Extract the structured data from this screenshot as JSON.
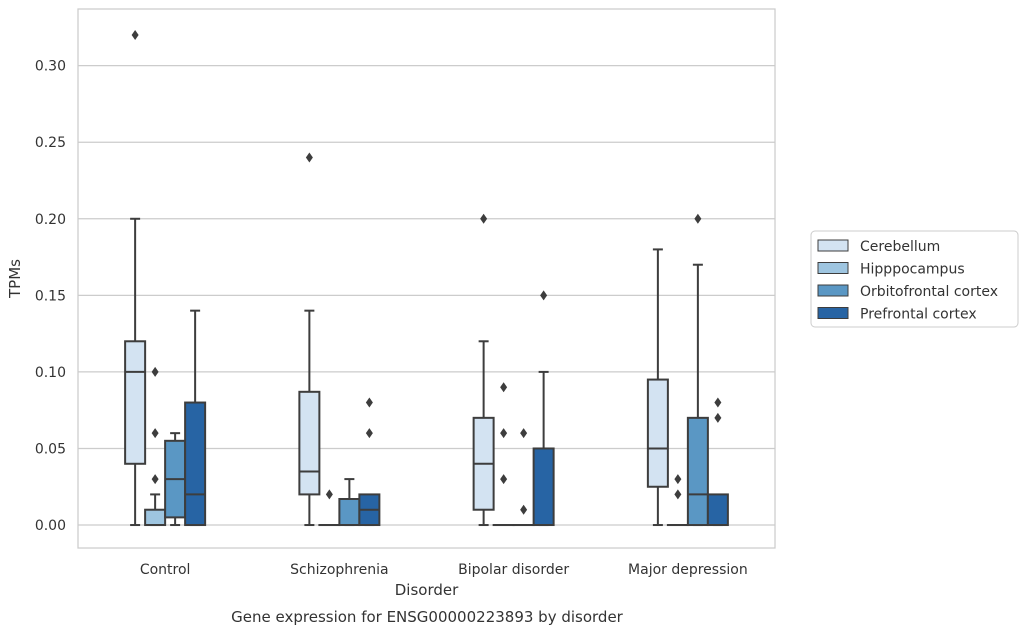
{
  "chart_data": {
    "type": "box",
    "caption": "Gene expression for ENSG00000223893 by disorder",
    "xlabel": "Disorder",
    "ylabel": "TPMs",
    "ylim": [
      -0.015,
      0.337
    ],
    "yticks": [
      0.0,
      0.05,
      0.1,
      0.15,
      0.2,
      0.25,
      0.3
    ],
    "ytick_labels": [
      "0.00",
      "0.05",
      "0.10",
      "0.15",
      "0.20",
      "0.25",
      "0.30"
    ],
    "grid": "horizontal",
    "legend_position": "right",
    "categories": [
      "Control",
      "Schizophrenia",
      "Bipolar disorder",
      "Major depression"
    ],
    "series": [
      {
        "name": "Cerebellum",
        "color": "#d3e3f2",
        "boxes": [
          {
            "whislo": 0.0,
            "q1": 0.04,
            "med": 0.1,
            "q3": 0.12,
            "whishi": 0.2,
            "fliers": [
              0.32
            ]
          },
          {
            "whislo": 0.0,
            "q1": 0.02,
            "med": 0.035,
            "q3": 0.087,
            "whishi": 0.14,
            "fliers": [
              0.24
            ]
          },
          {
            "whislo": 0.0,
            "q1": 0.01,
            "med": 0.04,
            "q3": 0.07,
            "whishi": 0.12,
            "fliers": [
              0.2
            ]
          },
          {
            "whislo": 0.0,
            "q1": 0.025,
            "med": 0.05,
            "q3": 0.095,
            "whishi": 0.18,
            "fliers": []
          }
        ]
      },
      {
        "name": "Hipppocampus",
        "color": "#9ec5e0",
        "boxes": [
          {
            "whislo": 0.0,
            "q1": 0.0,
            "med": 0.0,
            "q3": 0.01,
            "whishi": 0.02,
            "fliers": [
              0.03,
              0.06,
              0.1
            ]
          },
          {
            "whislo": 0.0,
            "q1": 0.0,
            "med": 0.0,
            "q3": 0.0,
            "whishi": 0.0,
            "fliers": [
              0.02
            ]
          },
          {
            "whislo": 0.0,
            "q1": 0.0,
            "med": 0.0,
            "q3": 0.0,
            "whishi": 0.0,
            "fliers": [
              0.03,
              0.06,
              0.09
            ]
          },
          {
            "whislo": 0.0,
            "q1": 0.0,
            "med": 0.0,
            "q3": 0.0,
            "whishi": 0.0,
            "fliers": [
              0.02,
              0.03
            ]
          }
        ]
      },
      {
        "name": "Orbitofrontal cortex",
        "color": "#5a97c4",
        "boxes": [
          {
            "whislo": 0.0,
            "q1": 0.005,
            "med": 0.03,
            "q3": 0.055,
            "whishi": 0.06,
            "fliers": []
          },
          {
            "whislo": 0.0,
            "q1": 0.0,
            "med": 0.0,
            "q3": 0.017,
            "whishi": 0.03,
            "fliers": []
          },
          {
            "whislo": 0.0,
            "q1": 0.0,
            "med": 0.0,
            "q3": 0.0,
            "whishi": 0.0,
            "fliers": [
              0.01,
              0.06
            ]
          },
          {
            "whislo": 0.0,
            "q1": 0.0,
            "med": 0.02,
            "q3": 0.07,
            "whishi": 0.17,
            "fliers": [
              0.2
            ]
          }
        ]
      },
      {
        "name": "Prefrontal cortex",
        "color": "#2764a4",
        "boxes": [
          {
            "whislo": 0.0,
            "q1": 0.0,
            "med": 0.02,
            "q3": 0.08,
            "whishi": 0.14,
            "fliers": []
          },
          {
            "whislo": 0.0,
            "q1": 0.0,
            "med": 0.01,
            "q3": 0.02,
            "whishi": 0.02,
            "fliers": [
              0.06,
              0.08
            ]
          },
          {
            "whislo": 0.0,
            "q1": 0.0,
            "med": 0.0,
            "q3": 0.05,
            "whishi": 0.1,
            "fliers": [
              0.15
            ]
          },
          {
            "whislo": 0.0,
            "q1": 0.0,
            "med": 0.0,
            "q3": 0.02,
            "whishi": 0.02,
            "fliers": [
              0.07,
              0.08
            ]
          }
        ]
      }
    ]
  }
}
